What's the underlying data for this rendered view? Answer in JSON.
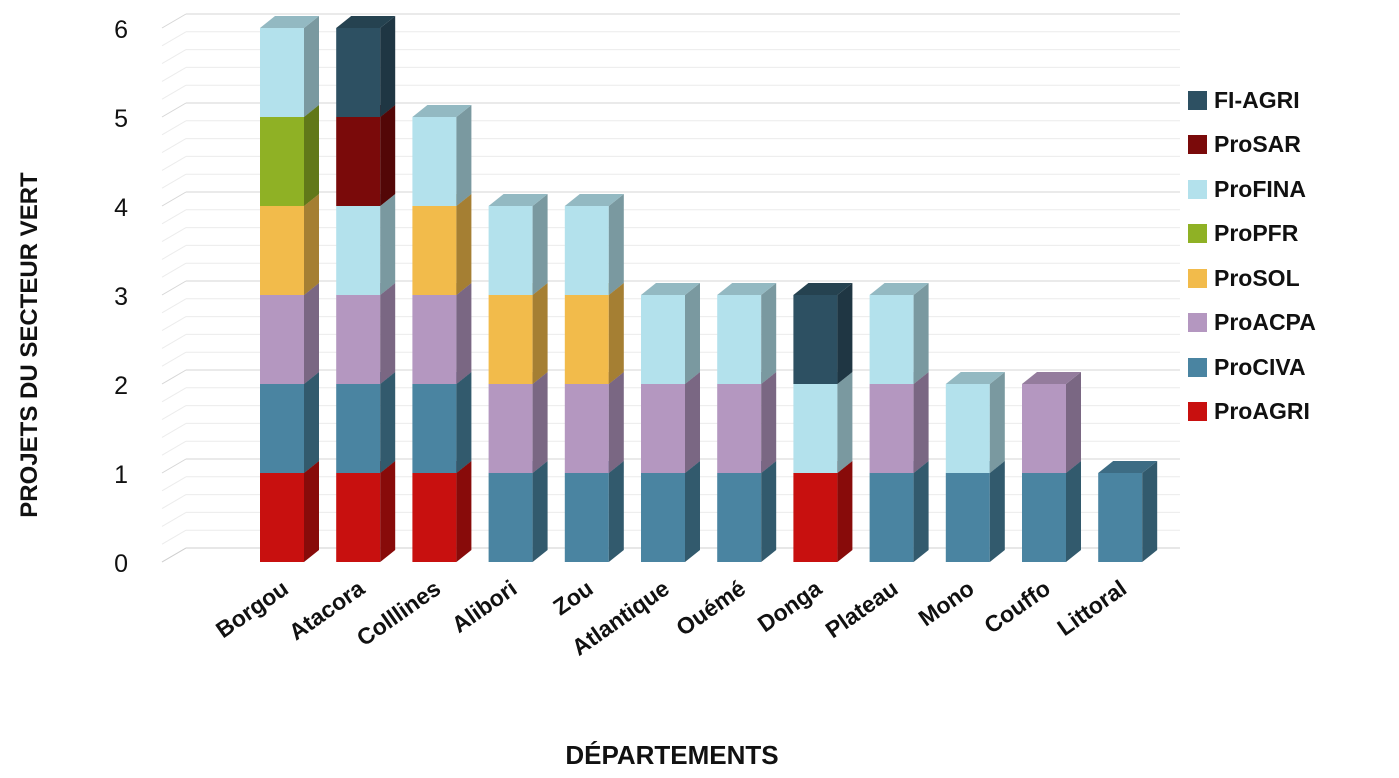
{
  "chart_data": {
    "type": "bar",
    "stacked": true,
    "three_d": true,
    "title": "",
    "xlabel": "DÉPARTEMENTS",
    "ylabel": "PROJETS DU SECTEUR VERT",
    "ylim": [
      0,
      6
    ],
    "yticks": [
      "0",
      "1",
      "2",
      "3",
      "4",
      "5",
      "6"
    ],
    "grid": true,
    "legend_position": "right",
    "categories": [
      "Borgou",
      "Atacora",
      "Colllines",
      "Alibori",
      "Zou",
      "Atlantique",
      "Ouémé",
      "Donga",
      "Plateau",
      "Mono",
      "Couffo",
      "Littoral"
    ],
    "series": [
      {
        "name": "ProAGRI",
        "color": "#c8100f",
        "values": [
          1,
          1,
          1,
          0,
          0,
          0,
          0,
          1,
          0,
          0,
          0,
          0
        ]
      },
      {
        "name": "ProCIVA",
        "color": "#4a84a1",
        "values": [
          1,
          1,
          1,
          1,
          1,
          1,
          1,
          0,
          1,
          1,
          1,
          1
        ]
      },
      {
        "name": "ProACPA",
        "color": "#b497c0",
        "values": [
          1,
          1,
          1,
          1,
          1,
          1,
          1,
          0,
          1,
          0,
          1,
          0
        ]
      },
      {
        "name": "ProSOL",
        "color": "#f2bb4b",
        "values": [
          1,
          0,
          1,
          1,
          1,
          0,
          0,
          0,
          0,
          0,
          0,
          0
        ]
      },
      {
        "name": "ProPFR",
        "color": "#8fb125",
        "values": [
          1,
          0,
          0,
          0,
          0,
          0,
          0,
          0,
          0,
          0,
          0,
          0
        ]
      },
      {
        "name": "ProFINA",
        "color": "#b3e1ec",
        "values": [
          1,
          1,
          1,
          1,
          1,
          1,
          1,
          1,
          1,
          1,
          0,
          0
        ]
      },
      {
        "name": "ProSAR",
        "color": "#7a0a0a",
        "values": [
          0,
          1,
          0,
          0,
          0,
          0,
          0,
          0,
          0,
          0,
          0,
          0
        ]
      },
      {
        "name": "FI-AGRI",
        "color": "#2d5062",
        "values": [
          0,
          1,
          0,
          0,
          0,
          0,
          0,
          1,
          0,
          0,
          0,
          0
        ]
      }
    ]
  }
}
